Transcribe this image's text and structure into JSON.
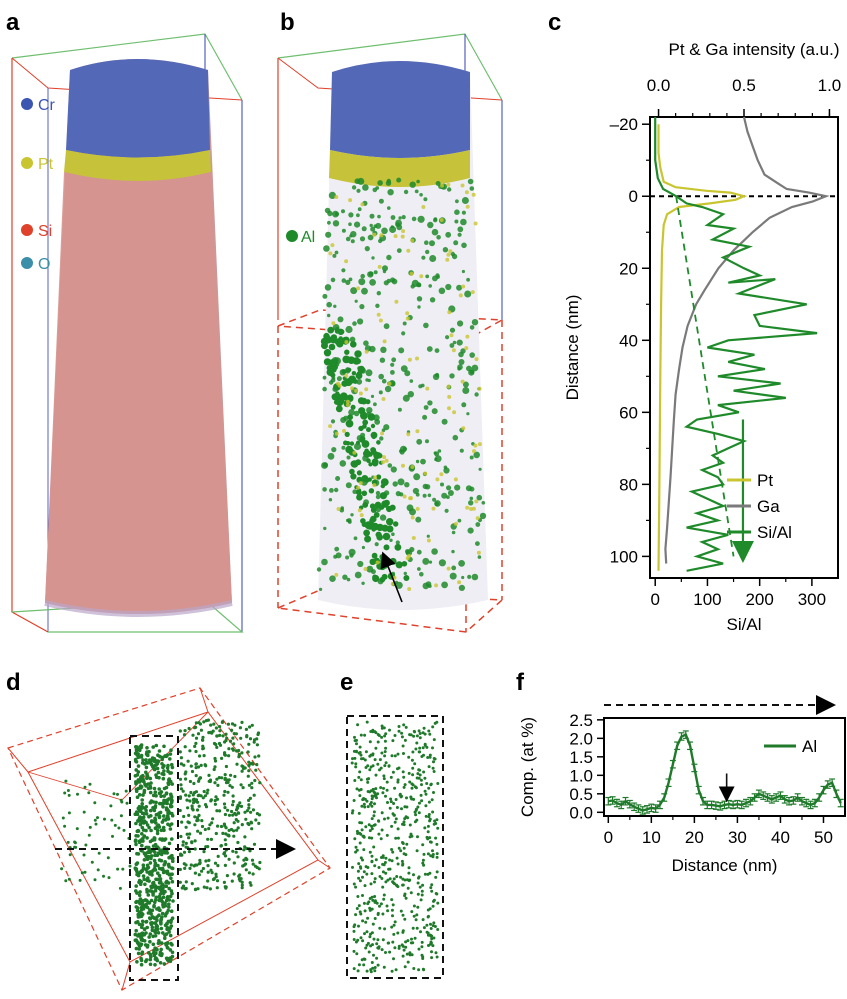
{
  "panels": {
    "a": {
      "letter": "a",
      "element_labels": [
        {
          "text": "Cr",
          "color": "#3a56b0"
        },
        {
          "text": "Pt",
          "color": "#c9c530"
        },
        {
          "text": "Si",
          "color": "#e0412a"
        },
        {
          "text": "O",
          "color": "#3b8fa8"
        }
      ]
    },
    "b": {
      "letter": "b",
      "element_label": {
        "text": "Al",
        "color": "#1f8a2a"
      }
    },
    "c": {
      "letter": "c"
    },
    "d": {
      "letter": "d"
    },
    "e": {
      "letter": "e"
    },
    "f": {
      "letter": "f"
    }
  },
  "colors": {
    "pt": "#c9c530",
    "ga": "#7a7a7a",
    "sial": "#1f8a2a",
    "al": "#1f7a2a",
    "box_red": "#e0412a",
    "box_blue": "#5560c0",
    "box_green": "#6fbf6f"
  },
  "chart_data": [
    {
      "panel": "c",
      "type": "line",
      "xlabel_top": "Pt & Ga intensity (a.u.)",
      "xlabel_bottom": "Si/Al",
      "ylabel": "Distance (nm)",
      "xlim_top": [
        -0.05,
        1.05
      ],
      "xlim_bottom": [
        -10,
        350
      ],
      "ylim": [
        -22,
        106
      ],
      "y_inverted": true,
      "top_ticks": [
        0.0,
        0.5,
        1.0
      ],
      "top_tick_labels": [
        "0.0",
        "0.5",
        "1.0"
      ],
      "bottom_ticks": [
        0,
        100,
        200,
        300
      ],
      "bottom_tick_labels": [
        "0",
        "100",
        "200",
        "300"
      ],
      "y_ticks": [
        -20,
        0,
        20,
        40,
        60,
        80,
        100
      ],
      "y_tick_labels": [
        "–20",
        "0",
        "20",
        "40",
        "60",
        "80",
        "100"
      ],
      "legend": [
        "Pt",
        "Ga",
        "Si/Al"
      ],
      "legend_position": "bottom-right",
      "series": [
        {
          "name": "Pt",
          "axis": "top",
          "points": [
            [
              0.0,
              -20
            ],
            [
              0.0,
              -12
            ],
            [
              0.01,
              -8
            ],
            [
              0.03,
              -4
            ],
            [
              0.1,
              -2.5
            ],
            [
              0.28,
              -1.5
            ],
            [
              0.42,
              -1
            ],
            [
              0.5,
              0
            ],
            [
              0.45,
              1
            ],
            [
              0.3,
              2
            ],
            [
              0.12,
              3
            ],
            [
              0.05,
              5
            ],
            [
              0.03,
              8
            ],
            [
              0.02,
              15
            ],
            [
              0.015,
              30
            ],
            [
              0.01,
              50
            ],
            [
              0.005,
              80
            ],
            [
              0.0,
              104
            ]
          ]
        },
        {
          "name": "Ga",
          "axis": "top",
          "points": [
            [
              0.5,
              -22
            ],
            [
              0.52,
              -18
            ],
            [
              0.55,
              -14
            ],
            [
              0.58,
              -10
            ],
            [
              0.62,
              -6
            ],
            [
              0.7,
              -3.5
            ],
            [
              0.75,
              -2
            ],
            [
              0.88,
              -1
            ],
            [
              0.98,
              0
            ],
            [
              0.9,
              1.5
            ],
            [
              0.78,
              3
            ],
            [
              0.65,
              6
            ],
            [
              0.55,
              10
            ],
            [
              0.44,
              15
            ],
            [
              0.35,
              20
            ],
            [
              0.27,
              26
            ],
            [
              0.22,
              30
            ],
            [
              0.17,
              36
            ],
            [
              0.14,
              42
            ],
            [
              0.12,
              48
            ],
            [
              0.1,
              55
            ],
            [
              0.09,
              62
            ],
            [
              0.08,
              70
            ],
            [
              0.07,
              78
            ],
            [
              0.06,
              85
            ],
            [
              0.05,
              92
            ],
            [
              0.04,
              98
            ],
            [
              0.045,
              102
            ]
          ]
        },
        {
          "name": "Si/Al",
          "axis": "bottom",
          "points": [
            [
              0,
              -22
            ],
            [
              0,
              -10
            ],
            [
              5,
              -5
            ],
            [
              15,
              -2
            ],
            [
              40,
              0
            ],
            [
              60,
              2
            ],
            [
              90,
              3
            ],
            [
              130,
              5
            ],
            [
              100,
              8
            ],
            [
              150,
              9
            ],
            [
              110,
              12
            ],
            [
              180,
              14
            ],
            [
              130,
              17
            ],
            [
              170,
              20
            ],
            [
              200,
              22
            ],
            [
              140,
              24
            ],
            [
              230,
              23
            ],
            [
              160,
              27
            ],
            [
              290,
              30
            ],
            [
              190,
              33
            ],
            [
              200,
              36
            ],
            [
              310,
              38
            ],
            [
              140,
              40
            ],
            [
              100,
              42
            ],
            [
              190,
              44
            ],
            [
              140,
              46
            ],
            [
              210,
              48
            ],
            [
              120,
              50
            ],
            [
              240,
              52
            ],
            [
              150,
              54
            ],
            [
              250,
              56
            ],
            [
              120,
              58
            ],
            [
              160,
              60
            ],
            [
              80,
              62
            ],
            [
              60,
              64
            ],
            [
              120,
              66
            ],
            [
              170,
              68
            ],
            [
              140,
              70
            ],
            [
              110,
              72
            ],
            [
              130,
              74
            ],
            [
              90,
              76
            ],
            [
              120,
              78
            ],
            [
              130,
              80
            ],
            [
              70,
              82
            ],
            [
              100,
              84
            ],
            [
              130,
              86
            ],
            [
              80,
              88
            ],
            [
              120,
              90
            ],
            [
              60,
              92
            ],
            [
              140,
              94
            ],
            [
              90,
              96
            ],
            [
              120,
              98
            ],
            [
              80,
              100
            ],
            [
              130,
              102
            ],
            [
              60,
              104
            ]
          ]
        }
      ],
      "annotations": [
        "dashed horizontal line at 0 nm",
        "dashed green trend line",
        "downward arrow"
      ]
    },
    {
      "panel": "f",
      "type": "line",
      "xlabel": "Distance (nm)",
      "ylabel": "Comp. (at %)",
      "xlim": [
        -1,
        55
      ],
      "ylim": [
        -0.1,
        2.55
      ],
      "x_ticks": [
        0,
        10,
        20,
        30,
        40,
        50
      ],
      "x_tick_labels": [
        "0",
        "10",
        "20",
        "30",
        "40",
        "50"
      ],
      "y_ticks": [
        0.0,
        0.5,
        1.0,
        1.5,
        2.0,
        2.5
      ],
      "y_tick_labels": [
        "0.0",
        "0.5",
        "1.0",
        "1.5",
        "2.0",
        "2.5"
      ],
      "legend": [
        "Al"
      ],
      "legend_position": "top-right",
      "series": [
        {
          "name": "Al",
          "x": [
            0,
            1,
            2,
            3,
            4,
            5,
            6,
            7,
            8,
            9,
            10,
            11,
            12,
            13,
            14,
            15,
            16,
            17,
            18,
            19,
            20,
            21,
            22,
            23,
            24,
            25,
            26,
            27,
            28,
            29,
            30,
            31,
            32,
            33,
            34,
            35,
            36,
            37,
            38,
            39,
            40,
            41,
            42,
            43,
            44,
            45,
            46,
            47,
            48,
            49,
            50,
            51,
            52,
            53,
            54
          ],
          "y": [
            0.3,
            0.32,
            0.25,
            0.2,
            0.3,
            0.22,
            0.15,
            0.1,
            0.05,
            0.08,
            0.12,
            0.1,
            0.2,
            0.4,
            0.8,
            1.3,
            1.8,
            2.05,
            2.1,
            1.8,
            1.2,
            0.6,
            0.3,
            0.2,
            0.2,
            0.18,
            0.16,
            0.2,
            0.22,
            0.2,
            0.22,
            0.2,
            0.25,
            0.3,
            0.4,
            0.5,
            0.45,
            0.4,
            0.35,
            0.4,
            0.45,
            0.35,
            0.3,
            0.32,
            0.4,
            0.3,
            0.25,
            0.2,
            0.25,
            0.4,
            0.6,
            0.75,
            0.8,
            0.5,
            0.25
          ],
          "error": 0.1
        }
      ],
      "annotations": [
        "dashed arrow pointing right above plot",
        "downward arrow near 28 nm"
      ]
    }
  ]
}
